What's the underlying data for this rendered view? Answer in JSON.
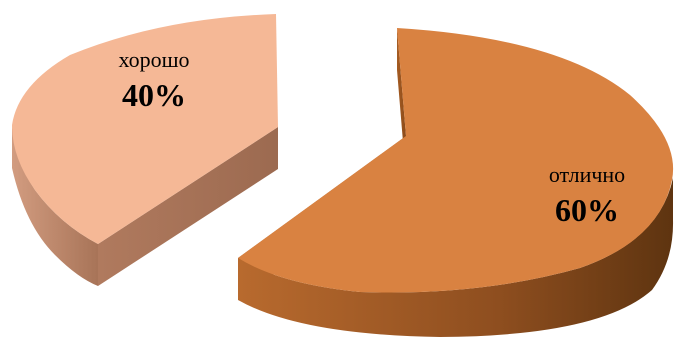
{
  "chart_data": {
    "type": "pie",
    "style": "3d-exploded",
    "slices": [
      {
        "category": "отлично",
        "value": 60,
        "label": "60%",
        "color": "#D98241",
        "side_color": "#A65C22",
        "dark_color": "#5E3410"
      },
      {
        "category": "хорошо",
        "value": 40,
        "label": "40%",
        "color": "#F5B896",
        "side_color": "#BE8669",
        "dark_color": "#8A5E48"
      }
    ],
    "legend": "none"
  }
}
